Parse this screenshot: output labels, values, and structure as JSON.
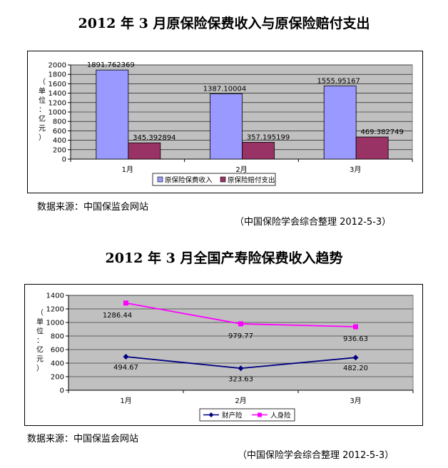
{
  "page": {
    "title1": "2012 年 3 月原保险保费收入与原保险赔付支出",
    "title2": "2012 年 3 月全国产寿险保费收入趋势",
    "source1": "数据来源：中国保监会网站",
    "credit1": "（中国保险学会综合整理    2012-5-3）",
    "source2": "数据来源：中国保监会网站",
    "credit2": "（中国保险学会综合整理    2012-5-3）"
  },
  "chart_data": [
    {
      "type": "bar",
      "title": "2012 年 3 月原保险保费收入与原保险赔付支出",
      "ylabel": "（单位：亿元）",
      "ylabel_chars": [
        "（",
        "单",
        "位",
        "：",
        "亿",
        "元",
        "）"
      ],
      "categories": [
        "1月",
        "2月",
        "3月"
      ],
      "ylim": [
        0,
        2000
      ],
      "yticks": [
        0,
        200,
        400,
        600,
        800,
        1000,
        1200,
        1400,
        1600,
        1800,
        2000
      ],
      "series": [
        {
          "name": "原保险保费收入",
          "color": "#9999ff",
          "values": [
            1891.762369,
            1387.10004,
            1555.95167
          ],
          "labels": [
            "1891.762369",
            "1387.10004",
            "1555.95167"
          ]
        },
        {
          "name": "原保险赔付支出",
          "color": "#993366",
          "values": [
            345.392894,
            357.195199,
            469.382749
          ],
          "labels": [
            "345.392894",
            "357.195199",
            "469.382749"
          ]
        }
      ],
      "grid": true,
      "legend": "bottom",
      "plot_background": "#c0c0c0"
    },
    {
      "type": "line",
      "title": "2012 年 3 月全国产寿险保费收入趋势",
      "ylabel": "（单位：亿元）",
      "ylabel_chars": [
        "（",
        "单",
        "位",
        "：",
        "亿",
        "元",
        "）"
      ],
      "categories": [
        "1月",
        "2月",
        "3月"
      ],
      "ylim": [
        0,
        1400
      ],
      "yticks": [
        0,
        200,
        400,
        600,
        800,
        1000,
        1200,
        1400
      ],
      "series": [
        {
          "name": "财产险",
          "color": "#000080",
          "values": [
            494.67,
            323.63,
            482.2
          ],
          "labels": [
            "494.67",
            "323.63",
            "482.20"
          ]
        },
        {
          "name": "人身险",
          "color": "#ff00ff",
          "values": [
            1286.44,
            979.77,
            936.63
          ],
          "labels": [
            "1286.44",
            "979.77",
            "936.63"
          ]
        }
      ],
      "grid": true,
      "legend": "bottom",
      "plot_background": "#c0c0c0"
    }
  ]
}
